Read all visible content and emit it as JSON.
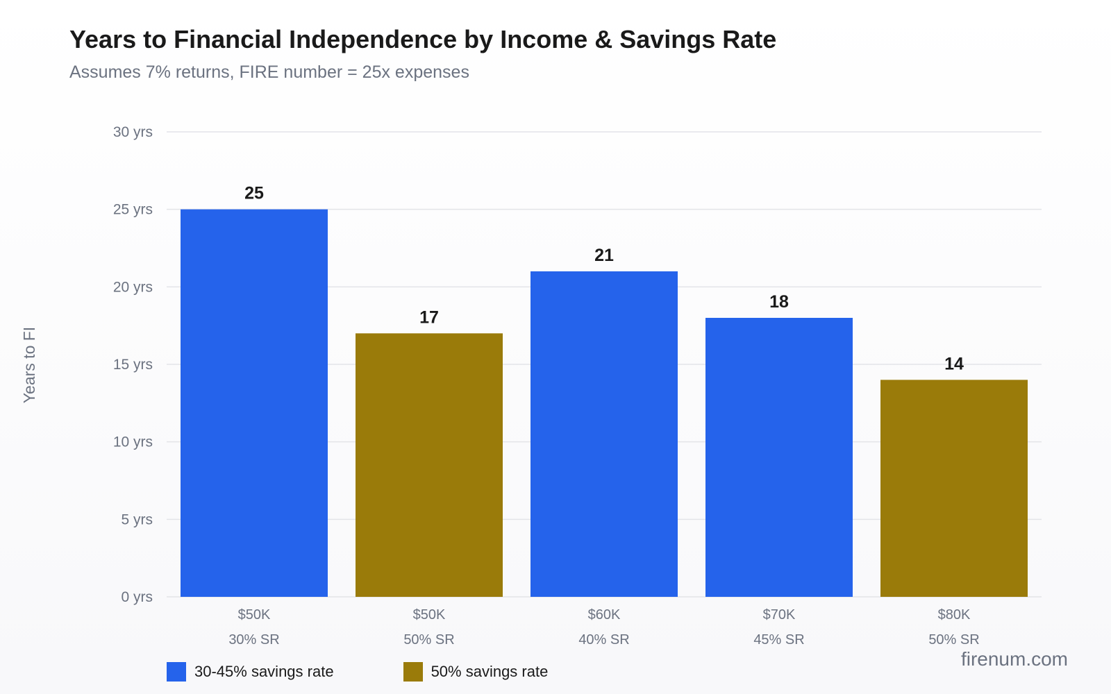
{
  "chart_data": {
    "type": "bar",
    "title": "Years to Financial Independence by Income & Savings Rate",
    "subtitle": "Assumes 7% returns, FIRE number = 25x expenses",
    "ylabel": "Years to FI",
    "xlabel": "",
    "ylim": [
      0,
      30
    ],
    "yticks": [
      0,
      5,
      10,
      15,
      20,
      25,
      30
    ],
    "ytick_suffix": " yrs",
    "grid": true,
    "categories": [
      [
        "$50K",
        "30% SR"
      ],
      [
        "$50K",
        "50% SR"
      ],
      [
        "$60K",
        "40% SR"
      ],
      [
        "$70K",
        "45% SR"
      ],
      [
        "$80K",
        "50% SR"
      ]
    ],
    "values": [
      25,
      17,
      21,
      18,
      14
    ],
    "bar_groups": [
      0,
      1,
      0,
      0,
      1
    ],
    "legend_position": "bottom-left",
    "legend": [
      {
        "label": "30-45% savings rate",
        "color": "#2563eb"
      },
      {
        "label": "50% savings rate",
        "color": "#9a7b0a"
      }
    ]
  },
  "watermark": "firenum.com"
}
